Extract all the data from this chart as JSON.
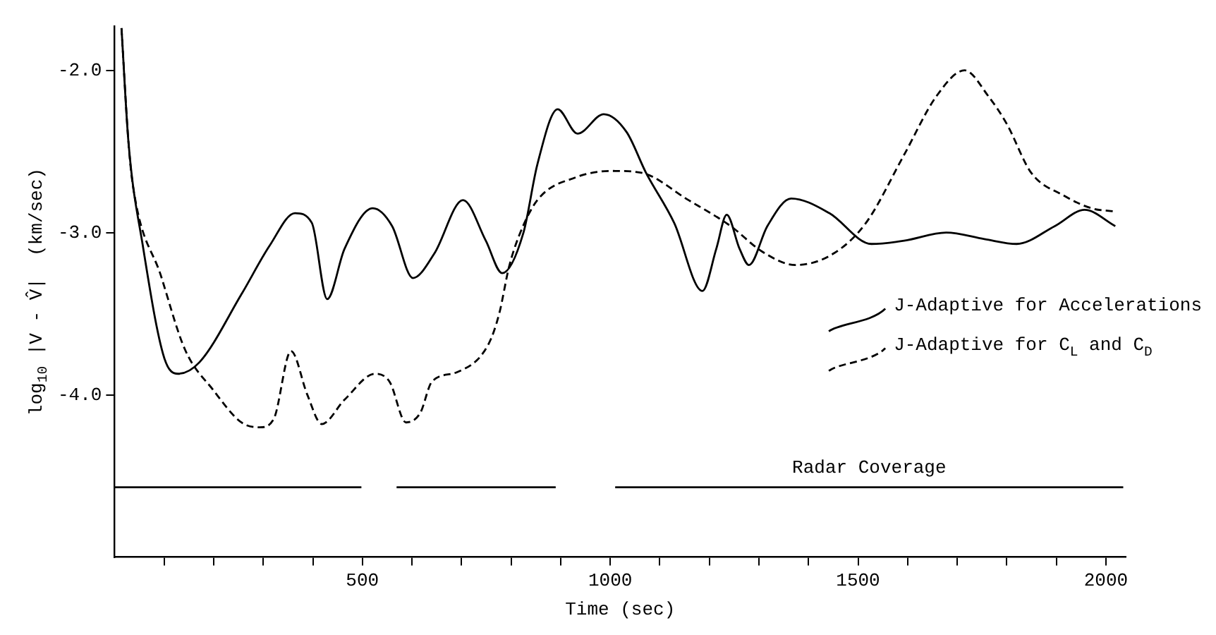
{
  "chart_data": {
    "type": "line",
    "xlabel": "Time (sec)",
    "ylabel": "log$_{10}$ |V - V̂|  (km/sec)",
    "xlim": [
      0,
      2040
    ],
    "ylim": [
      -5,
      -1.73
    ],
    "xticks": [
      {
        "value": 100,
        "label": null
      },
      {
        "value": 200,
        "label": null
      },
      {
        "value": 300,
        "label": null
      },
      {
        "value": 400,
        "label": null
      },
      500,
      {
        "value": 600,
        "label": null
      },
      {
        "value": 700,
        "label": null
      },
      {
        "value": 800,
        "label": null
      },
      {
        "value": 900,
        "label": null
      },
      1000,
      {
        "value": 1100,
        "label": null
      },
      {
        "value": 1200,
        "label": null
      },
      {
        "value": 1300,
        "label": null
      },
      {
        "value": 1400,
        "label": null
      },
      1500,
      {
        "value": 1600,
        "label": null
      },
      {
        "value": 1700,
        "label": null
      },
      {
        "value": 1800,
        "label": null
      },
      {
        "value": 1900,
        "label": null
      },
      2000
    ],
    "yticks": [
      {
        "value": -2,
        "label": "-2.0"
      },
      {
        "value": -3,
        "label": "-3.0"
      },
      {
        "value": -4,
        "label": "-4.0"
      }
    ],
    "grid": false,
    "legend": "right",
    "marker": "none",
    "annotations": [
      "Radar Coverage"
    ],
    "series": [
      {
        "name": "J-Adaptive for Accelerations",
        "color": "#000000",
        "line_style": "solid",
        "x": [
          14,
          28,
          57,
          100,
          128,
          171,
          256,
          313,
          364,
          398,
          429,
          464,
          521,
          560,
          602,
          645,
          703,
          749,
          782,
          825,
          853,
          894,
          934,
          987,
          1033,
          1072,
          1129,
          1186,
          1214,
          1235,
          1261,
          1280,
          1317,
          1365,
          1442,
          1527,
          1593,
          1678,
          1755,
          1820,
          1897,
          1957,
          2019
        ],
        "values": [
          -1.74,
          -2.44,
          -3.08,
          -3.77,
          -3.87,
          -3.8,
          -3.38,
          -3.08,
          -2.88,
          -2.94,
          -3.41,
          -3.1,
          -2.85,
          -2.96,
          -3.28,
          -3.13,
          -2.8,
          -3.05,
          -3.25,
          -3.0,
          -2.58,
          -2.24,
          -2.39,
          -2.27,
          -2.38,
          -2.63,
          -2.94,
          -3.36,
          -3.1,
          -2.89,
          -3.1,
          -3.2,
          -2.96,
          -2.79,
          -2.88,
          -3.07,
          -3.05,
          -3.0,
          -3.04,
          -3.07,
          -2.96,
          -2.86,
          -2.96
        ]
      },
      {
        "name": "J-Adaptive for C$_{L}$ and C$_{D}$",
        "color": "#000000",
        "line_style": "dashed",
        "x": [
          14,
          28,
          37,
          94,
          142,
          199,
          256,
          293,
          321,
          356,
          389,
          418,
          464,
          526,
          555,
          588,
          617,
          640,
          691,
          754,
          776,
          796,
          816,
          853,
          930,
          1004,
          1061,
          1158,
          1243,
          1308,
          1374,
          1450,
          1516,
          1593,
          1658,
          1715,
          1763,
          1800,
          1849,
          1914,
          1971,
          2019
        ],
        "values": [
          -1.74,
          -2.44,
          -2.71,
          -3.27,
          -3.72,
          -3.97,
          -4.17,
          -4.2,
          -4.15,
          -3.73,
          -4.0,
          -4.18,
          -4.03,
          -3.87,
          -3.92,
          -4.17,
          -4.11,
          -3.92,
          -3.86,
          -3.69,
          -3.5,
          -3.21,
          -3.02,
          -2.8,
          -2.66,
          -2.62,
          -2.63,
          -2.8,
          -2.96,
          -3.12,
          -3.2,
          -3.13,
          -2.94,
          -2.52,
          -2.16,
          -2.0,
          -2.16,
          -2.33,
          -2.63,
          -2.77,
          -2.85,
          -2.87
        ]
      },
      {
        "color": "#000000",
        "line_style": "solid",
        "x": [
          0,
          498,
          530,
          569,
          890,
          950,
          1010,
          2035
        ],
        "values": [
          -4.57,
          -4.57,
          null,
          -4.57,
          -4.57,
          null,
          -4.57,
          -4.57
        ]
      }
    ]
  }
}
